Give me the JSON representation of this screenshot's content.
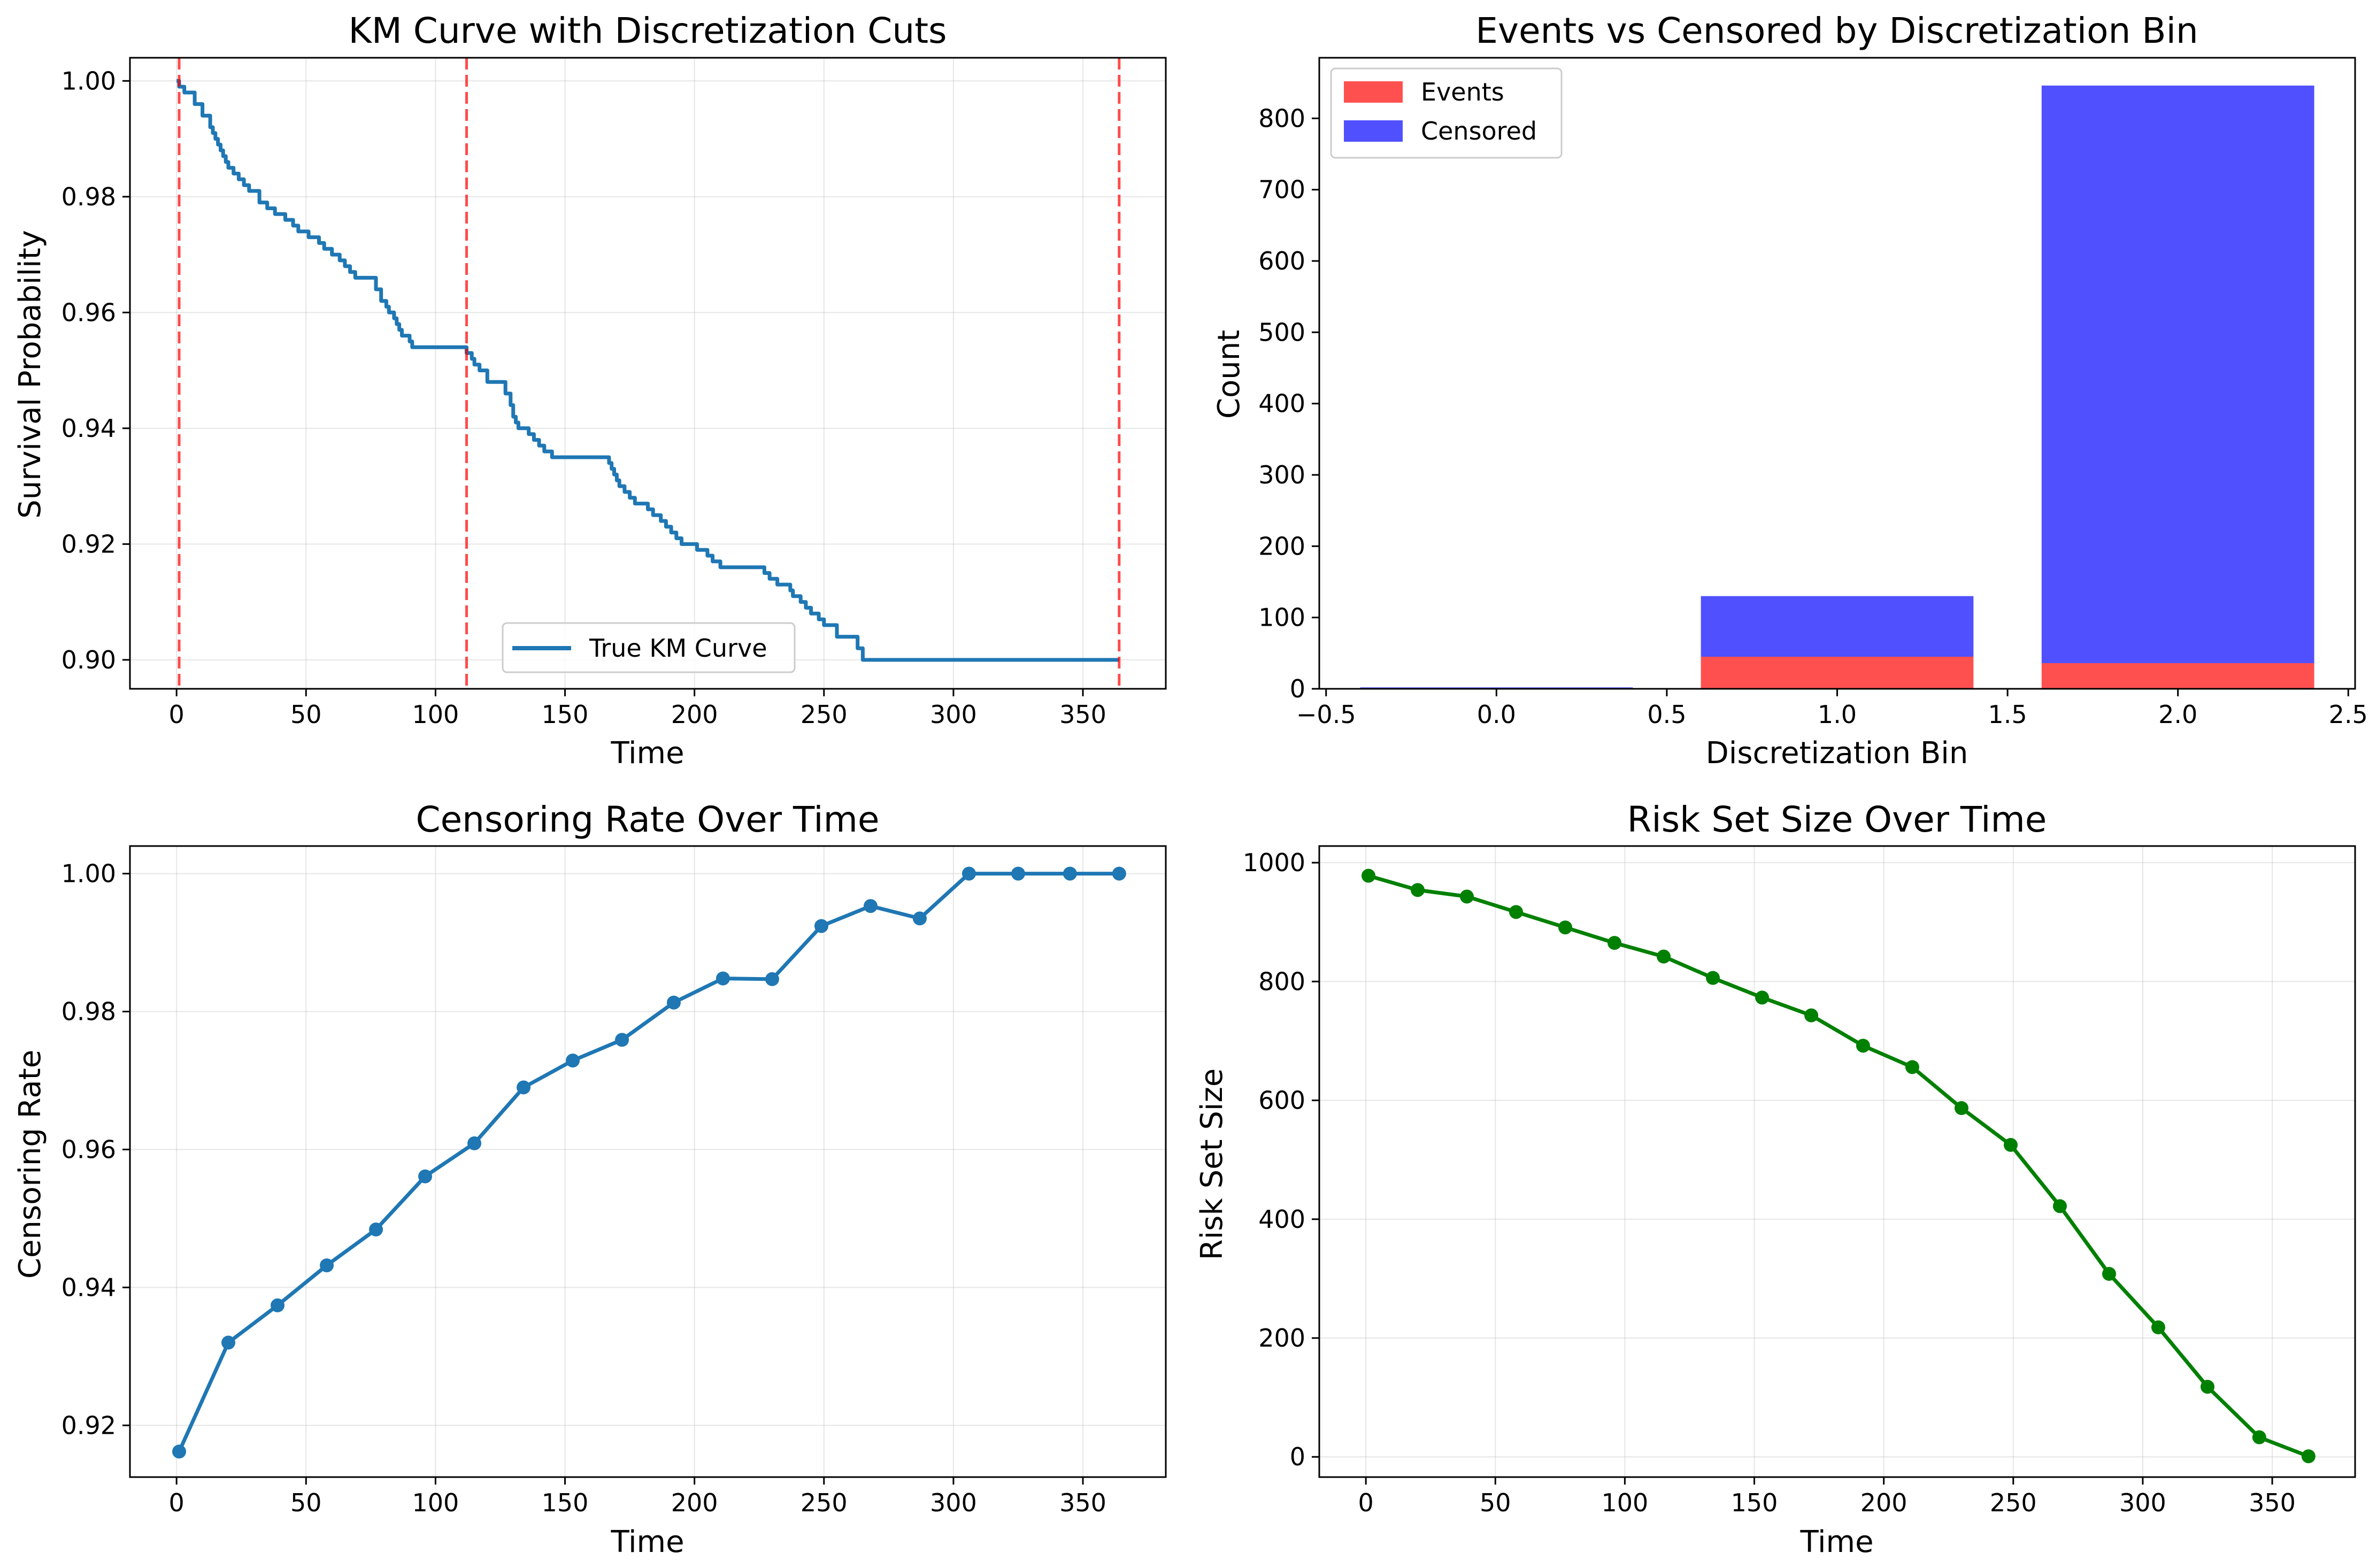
{
  "chart_data": [
    {
      "type": "line",
      "title": "KM Curve with Discretization Cuts",
      "xlabel": "Time",
      "ylabel": "Survival Probability",
      "xlim": [
        -18,
        382
      ],
      "ylim": [
        0.895,
        1.004
      ],
      "xticks": [
        0,
        50,
        100,
        150,
        200,
        250,
        300,
        350
      ],
      "xtick_labels": [
        "0",
        "50",
        "100",
        "150",
        "200",
        "250",
        "300",
        "350"
      ],
      "yticks": [
        0.9,
        0.92,
        0.94,
        0.96,
        0.98,
        1.0
      ],
      "ytick_labels": [
        "0.90",
        "0.92",
        "0.94",
        "0.96",
        "0.98",
        "1.00"
      ],
      "grid": true,
      "legend": {
        "location": "lower center",
        "entries": [
          "True KM Curve"
        ]
      },
      "series": [
        {
          "name": "True KM Curve",
          "color": "#1f77b4",
          "step": true,
          "x": [
            0,
            1,
            3,
            7,
            10,
            13,
            14,
            15,
            16,
            17,
            18,
            19,
            20,
            22,
            24,
            26,
            28,
            32,
            35,
            38,
            42,
            45,
            47,
            51,
            55,
            57,
            60,
            63,
            65,
            67,
            69,
            77,
            79,
            81,
            82,
            84,
            85,
            86,
            87,
            90,
            91,
            112,
            114,
            115,
            117,
            120,
            127,
            129,
            130,
            131,
            132,
            136,
            138,
            140,
            142,
            145,
            167,
            168,
            169,
            170,
            171,
            173,
            175,
            177,
            182,
            184,
            187,
            189,
            191,
            193,
            195,
            201,
            205,
            207,
            210,
            227,
            229,
            232,
            237,
            238,
            241,
            243,
            245,
            248,
            250,
            255,
            263,
            265,
            287,
            297,
            364
          ],
          "y": [
            1.0,
            0.999,
            0.998,
            0.996,
            0.994,
            0.992,
            0.991,
            0.99,
            0.989,
            0.988,
            0.987,
            0.986,
            0.985,
            0.984,
            0.983,
            0.982,
            0.981,
            0.979,
            0.978,
            0.977,
            0.976,
            0.975,
            0.974,
            0.973,
            0.972,
            0.971,
            0.97,
            0.969,
            0.968,
            0.967,
            0.966,
            0.964,
            0.962,
            0.961,
            0.96,
            0.959,
            0.958,
            0.957,
            0.956,
            0.955,
            0.954,
            0.953,
            0.952,
            0.951,
            0.95,
            0.948,
            0.946,
            0.944,
            0.942,
            0.941,
            0.94,
            0.939,
            0.938,
            0.937,
            0.936,
            0.935,
            0.934,
            0.933,
            0.932,
            0.931,
            0.93,
            0.929,
            0.928,
            0.927,
            0.926,
            0.925,
            0.924,
            0.923,
            0.922,
            0.921,
            0.92,
            0.919,
            0.918,
            0.917,
            0.916,
            0.915,
            0.914,
            0.913,
            0.912,
            0.911,
            0.91,
            0.909,
            0.908,
            0.907,
            0.906,
            0.904,
            0.902,
            0.9,
            0.9,
            0.9,
            0.9
          ]
        }
      ],
      "vlines": [
        {
          "x": 1,
          "color": "#ff0000"
        },
        {
          "x": 112,
          "color": "#ff0000"
        },
        {
          "x": 364,
          "color": "#ff0000"
        }
      ]
    },
    {
      "type": "bar",
      "stacked": true,
      "title": "Events vs Censored by Discretization Bin",
      "xlabel": "Discretization Bin",
      "ylabel": "Count",
      "categories": [
        0,
        1,
        2
      ],
      "bar_width": 0.8,
      "xlim": [
        -0.52,
        2.52
      ],
      "ylim": [
        0,
        885
      ],
      "xticks": [
        -0.5,
        0.0,
        0.5,
        1.0,
        1.5,
        2.0,
        2.5
      ],
      "xtick_labels": [
        "−0.5",
        "0.0",
        "0.5",
        "1.0",
        "1.5",
        "2.0",
        "2.5"
      ],
      "yticks": [
        0,
        100,
        200,
        300,
        400,
        500,
        600,
        700,
        800
      ],
      "ytick_labels": [
        "0",
        "100",
        "200",
        "300",
        "400",
        "500",
        "600",
        "700",
        "800"
      ],
      "grid": false,
      "legend": {
        "location": "top-left",
        "entries": [
          "Events",
          "Censored"
        ]
      },
      "series": [
        {
          "name": "Events",
          "color": "#ff5050",
          "values": [
            1,
            45,
            36
          ]
        },
        {
          "name": "Censored",
          "color": "#5050ff",
          "values": [
            1,
            85,
            810
          ]
        }
      ]
    },
    {
      "type": "line",
      "title": "Censoring Rate Over Time",
      "xlabel": "Time",
      "ylabel": "Censoring Rate",
      "xlim": [
        -18,
        382
      ],
      "ylim": [
        0.9125,
        1.004
      ],
      "xticks": [
        0,
        50,
        100,
        150,
        200,
        250,
        300,
        350
      ],
      "xtick_labels": [
        "0",
        "50",
        "100",
        "150",
        "200",
        "250",
        "300",
        "350"
      ],
      "yticks": [
        0.92,
        0.94,
        0.96,
        0.98,
        1.0
      ],
      "ytick_labels": [
        "0.92",
        "0.94",
        "0.96",
        "0.98",
        "1.00"
      ],
      "grid": true,
      "series": [
        {
          "name": "Censoring Rate",
          "color": "#1f77b4",
          "marker": "o",
          "x": [
            1,
            20,
            39,
            58,
            77,
            96,
            115,
            134,
            153,
            172,
            192,
            211,
            230,
            249,
            268,
            287,
            306,
            325,
            345,
            364
          ],
          "y": [
            0.9162,
            0.932,
            0.9374,
            0.9432,
            0.9484,
            0.9561,
            0.9609,
            0.969,
            0.9729,
            0.9759,
            0.9813,
            0.9848,
            0.9847,
            0.9924,
            0.9953,
            0.9935,
            1.0,
            1.0,
            1.0,
            1.0
          ]
        }
      ]
    },
    {
      "type": "line",
      "title": "Risk Set Size Over Time",
      "xlabel": "Time",
      "ylabel": "Risk Set Size",
      "xlim": [
        -18,
        382
      ],
      "ylim": [
        -34,
        1028
      ],
      "xticks": [
        0,
        50,
        100,
        150,
        200,
        250,
        300,
        350
      ],
      "xtick_labels": [
        "0",
        "50",
        "100",
        "150",
        "200",
        "250",
        "300",
        "350"
      ],
      "yticks": [
        0,
        200,
        400,
        600,
        800,
        1000
      ],
      "ytick_labels": [
        "0",
        "200",
        "400",
        "600",
        "800",
        "1000"
      ],
      "grid": true,
      "series": [
        {
          "name": "Risk Set Size",
          "color": "#008000",
          "marker": "o",
          "x": [
            1,
            20,
            39,
            58,
            77,
            96,
            115,
            134,
            153,
            172,
            192,
            211,
            230,
            249,
            268,
            287,
            306,
            325,
            345,
            364
          ],
          "y": [
            978,
            954,
            943,
            917,
            891,
            865,
            842,
            806,
            773,
            743,
            692,
            656,
            587,
            525,
            422,
            308,
            218,
            118,
            33,
            1
          ]
        }
      ]
    }
  ]
}
